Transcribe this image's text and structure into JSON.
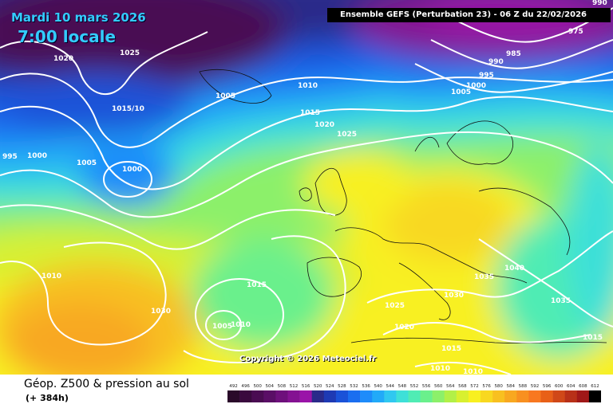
{
  "header": {
    "date": "Mardi 10 mars 2026",
    "local_time": "7:00 locale",
    "model_info": "Ensemble GEFS  (Perturbation 23)  -  06 Z du 22/02/2026"
  },
  "copyright": "Copyright © 2026 Meteociel.fr",
  "footer": {
    "product_title": "Géop. Z500 & pression au sol",
    "lead_time": "(+ 384h)"
  },
  "legend": {
    "values": [
      "492",
      "496",
      "500",
      "504",
      "508",
      "512",
      "516",
      "520",
      "524",
      "528",
      "532",
      "536",
      "540",
      "544",
      "548",
      "552",
      "556",
      "560",
      "564",
      "568",
      "572",
      "576",
      "580",
      "584",
      "588",
      "592",
      "596",
      "600",
      "604",
      "608",
      "612"
    ],
    "colors": [
      "#2a0a2a",
      "#3a0a3e",
      "#4a0c52",
      "#5a0e66",
      "#6e107c",
      "#841292",
      "#9a14a8",
      "#2a2a8a",
      "#1e3ab4",
      "#1a52d8",
      "#1a6ef0",
      "#1e8cfa",
      "#22aaf8",
      "#30c8f0",
      "#3ee0d8",
      "#50ecb4",
      "#6af08c",
      "#8cf06a",
      "#b2f048",
      "#d8f030",
      "#f8f020",
      "#f8d820",
      "#f8c020",
      "#f8a820",
      "#f89020",
      "#f87820",
      "#e86018",
      "#d04818",
      "#b83018",
      "#a01818",
      "#000000"
    ]
  },
  "isobars": [
    "1020",
    "1025",
    "1015/10",
    "1005",
    "1010",
    "1015",
    "1020",
    "1025",
    "995",
    "1000",
    "1005",
    "1000",
    "1010",
    "1030",
    "1015",
    "1005",
    "1010",
    "1025",
    "1020",
    "1035",
    "1030",
    "1040",
    "1035",
    "1015",
    "1015",
    "1010",
    "1010",
    "990",
    "985",
    "995",
    "1000",
    "1005",
    "975",
    "990"
  ]
}
